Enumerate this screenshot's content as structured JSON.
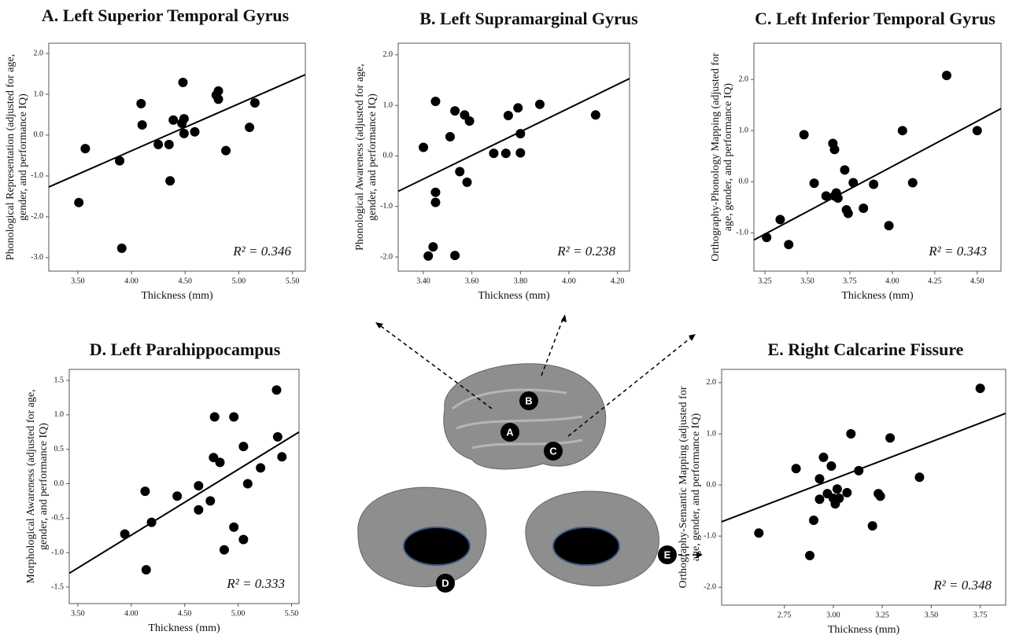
{
  "chart_data": [
    {
      "type": "scatter",
      "title": "A. Left Superior Temporal Gyrus",
      "xlabel": "Thickness (mm)",
      "ylabel": [
        "Phonological Representation (adjusted for age,",
        "gender, and performance IQ)"
      ],
      "annotation": "R² = 0.346",
      "color": "#000000",
      "x": [
        3.51,
        3.57,
        3.89,
        3.91,
        4.09,
        4.1,
        4.25,
        4.35,
        4.36,
        4.39,
        4.47,
        4.48,
        4.49,
        4.49,
        4.59,
        4.79,
        4.81,
        4.81,
        4.88,
        5.1,
        5.15
      ],
      "values": [
        -1.65,
        -0.33,
        -0.63,
        -2.77,
        0.77,
        0.25,
        -0.23,
        -0.23,
        -1.12,
        0.37,
        0.29,
        1.29,
        0.4,
        0.04,
        0.08,
        0.98,
        1.08,
        0.88,
        -0.38,
        0.19,
        0.79
      ],
      "fit_line": {
        "x": [
          3.23,
          5.62
        ],
        "y": [
          -1.27,
          1.48
        ]
      },
      "xlim": [
        3.23,
        5.62
      ],
      "ylim": [
        -3.33,
        2.25
      ],
      "xticks": [
        {
          "value": 3.5,
          "label": "3.50"
        },
        {
          "value": 4,
          "label": "4.00"
        },
        {
          "value": 4.5,
          "label": "4.50"
        },
        {
          "value": 5,
          "label": "5.00"
        },
        {
          "value": 5.5,
          "label": "5.50"
        }
      ],
      "yticks": [
        {
          "value": 2,
          "label": "2.0"
        },
        {
          "value": 1,
          "label": "1.0"
        },
        {
          "value": 0,
          "label": "0.0"
        },
        {
          "value": -1,
          "label": "-1.0"
        },
        {
          "value": -2,
          "label": "-2.0"
        },
        {
          "value": -3,
          "label": "-3.0"
        }
      ]
    },
    {
      "type": "scatter",
      "title": "B. Left Supramarginal Gyrus",
      "xlabel": "Thickness (mm)",
      "ylabel": [
        "Phonological Awareness (adjusted for age,",
        "gender, and performance IQ)"
      ],
      "annotation": "R² = 0.238",
      "color": "#000000",
      "x": [
        3.4,
        3.45,
        3.45,
        3.42,
        3.44,
        3.45,
        3.51,
        3.53,
        3.57,
        3.59,
        3.55,
        3.58,
        3.53,
        3.69,
        3.74,
        3.75,
        3.79,
        3.8,
        3.8,
        3.88,
        4.11
      ],
      "values": [
        0.17,
        -0.72,
        1.08,
        -1.98,
        -1.8,
        -0.92,
        0.38,
        0.89,
        0.81,
        0.69,
        -0.31,
        -0.52,
        -1.97,
        0.05,
        0.05,
        0.8,
        0.95,
        0.44,
        0.06,
        1.02,
        0.81
      ],
      "fit_line": {
        "x": [
          3.296,
          4.25
        ],
        "y": [
          -0.7,
          1.53
        ]
      },
      "xlim": [
        3.296,
        4.25
      ],
      "ylim": [
        -2.28,
        2.23
      ],
      "xticks": [
        {
          "value": 3.4,
          "label": "3.40"
        },
        {
          "value": 3.6,
          "label": "3.60"
        },
        {
          "value": 3.8,
          "label": "3.80"
        },
        {
          "value": 4,
          "label": "4.00"
        },
        {
          "value": 4.2,
          "label": "4.20"
        }
      ],
      "yticks": [
        {
          "value": 2,
          "label": "2.0"
        },
        {
          "value": 1,
          "label": "1.0"
        },
        {
          "value": 0,
          "label": "0.0"
        },
        {
          "value": -1,
          "label": "-1.0"
        },
        {
          "value": -2,
          "label": "-2.0"
        }
      ]
    },
    {
      "type": "scatter",
      "title": "C. Left Inferior Temporal Gyrus",
      "xlabel": "Thickness (mm)",
      "ylabel": [
        "Orthography-Phonology Mapping (adjusted for",
        "age, gender, and performance IQ)"
      ],
      "annotation": "R² = 0.343",
      "color": "#000000",
      "x": [
        3.26,
        3.34,
        3.39,
        3.48,
        3.54,
        3.61,
        3.65,
        3.66,
        3.66,
        3.67,
        3.68,
        3.72,
        3.73,
        3.74,
        3.77,
        3.83,
        3.89,
        3.98,
        4.06,
        4.12,
        4.32,
        4.5
      ],
      "values": [
        -1.09,
        -0.74,
        -1.23,
        0.92,
        -0.03,
        -0.28,
        0.75,
        0.63,
        -0.28,
        -0.22,
        -0.32,
        0.23,
        -0.55,
        -0.62,
        -0.02,
        -0.52,
        -0.05,
        -0.86,
        1.0,
        -0.02,
        2.08,
        1.0
      ],
      "fit_line": {
        "x": [
          3.185,
          4.64
        ],
        "y": [
          -1.14,
          1.43
        ]
      },
      "xlim": [
        3.185,
        4.64
      ],
      "ylim": [
        -1.75,
        2.71
      ],
      "xticks": [
        3.25,
        {
          "value": 3.5,
          "label": "3.50"
        },
        3.75,
        {
          "value": 4,
          "label": "4.00"
        },
        4.25,
        {
          "value": 4.5,
          "label": "4.50"
        }
      ],
      "yticks": [
        {
          "value": 2,
          "label": "2.0"
        },
        {
          "value": 1,
          "label": "1.0"
        },
        {
          "value": 0,
          "label": "0.0"
        },
        {
          "value": -1,
          "label": "-1.0"
        }
      ]
    },
    {
      "type": "scatter",
      "title": "D. Left Parahippocampus",
      "xlabel": "Thickness (mm)",
      "ylabel": [
        "Morphological Awareness (adjusted for age,",
        "gender, and performance IQ)"
      ],
      "annotation": "R² = 0.333",
      "color": "#000000",
      "x": [
        3.94,
        4.13,
        4.19,
        4.14,
        4.43,
        4.63,
        4.63,
        4.74,
        4.78,
        4.77,
        4.83,
        4.87,
        4.96,
        4.96,
        5.05,
        5.05,
        5.09,
        5.21,
        5.36,
        5.37,
        5.41
      ],
      "values": [
        -0.73,
        -0.11,
        -0.56,
        -1.25,
        -0.18,
        -0.03,
        -0.38,
        -0.25,
        0.97,
        0.38,
        0.31,
        -0.96,
        0.97,
        -0.63,
        0.54,
        -0.81,
        0.0,
        0.23,
        1.36,
        0.68,
        0.39
      ],
      "fit_line": {
        "x": [
          3.42,
          5.57
        ],
        "y": [
          -1.3,
          0.75
        ]
      },
      "xlim": [
        3.42,
        5.57
      ],
      "ylim": [
        -1.74,
        1.66
      ],
      "xticks": [
        {
          "value": 3.5,
          "label": "3.50"
        },
        {
          "value": 4,
          "label": "4.00"
        },
        {
          "value": 4.5,
          "label": "4.50"
        },
        {
          "value": 5,
          "label": "5.00"
        },
        {
          "value": 5.5,
          "label": "5.50"
        }
      ],
      "yticks": [
        1.5,
        {
          "value": 1,
          "label": "1.0"
        },
        0.5,
        {
          "value": 0,
          "label": "0.0"
        },
        -0.5,
        {
          "value": -1,
          "label": "-1.0"
        },
        -1.5
      ]
    },
    {
      "type": "scatter",
      "title": "E. Right Calcarine Fissure",
      "xlabel": "Thickness (mm)",
      "ylabel": [
        "Orthography-Semantic Mapping (adjusted for",
        "age, gender, and performance IQ)"
      ],
      "annotation": "R² = 0.348",
      "color": "#000000",
      "x": [
        2.62,
        2.81,
        2.88,
        2.9,
        2.93,
        2.93,
        2.95,
        2.97,
        2.99,
        3.0,
        3.01,
        3.02,
        3.03,
        3.07,
        3.09,
        3.13,
        3.2,
        3.23,
        3.24,
        3.29,
        3.44,
        3.75
      ],
      "values": [
        -0.94,
        0.32,
        -1.38,
        -0.69,
        -0.28,
        0.12,
        0.54,
        -0.17,
        0.37,
        -0.26,
        -0.37,
        -0.08,
        -0.26,
        -0.15,
        1.0,
        0.28,
        -0.8,
        -0.17,
        -0.22,
        0.92,
        0.15,
        1.89
      ],
      "fit_line": {
        "x": [
          2.43,
          3.88
        ],
        "y": [
          -0.72,
          1.4
        ]
      },
      "xlim": [
        2.43,
        3.88
      ],
      "ylim": [
        -2.35,
        2.26
      ],
      "xticks": [
        2.75,
        {
          "value": 3,
          "label": "3.00"
        },
        3.25,
        {
          "value": 3.5,
          "label": "3.50"
        },
        3.75
      ],
      "yticks": [
        {
          "value": 2,
          "label": "2.0"
        },
        {
          "value": 1,
          "label": "1.0"
        },
        {
          "value": 0,
          "label": "0.0"
        },
        {
          "value": -1,
          "label": "-1.0"
        },
        {
          "value": -2,
          "label": "-2.0"
        }
      ]
    }
  ],
  "brain_labels": [
    "A",
    "B",
    "C",
    "D",
    "E"
  ]
}
